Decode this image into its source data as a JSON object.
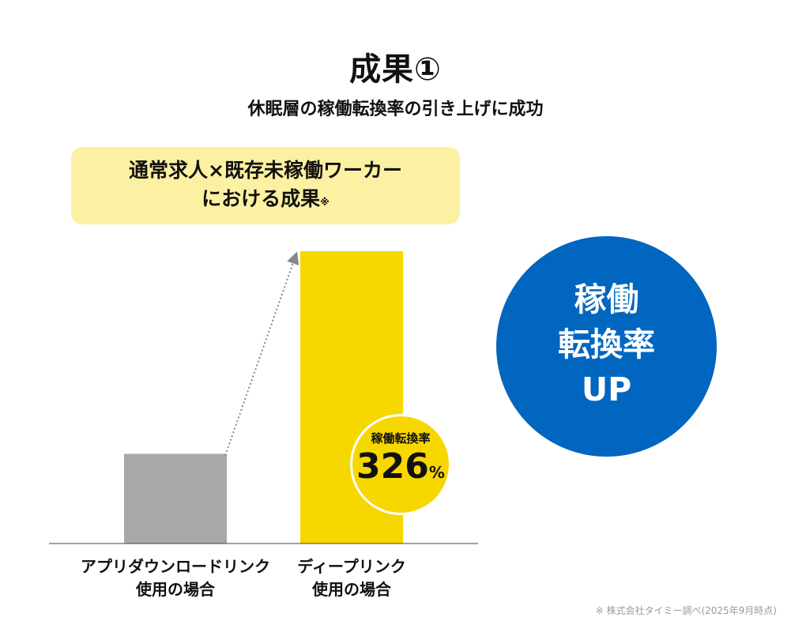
{
  "header": {
    "title": "成果①",
    "subtitle": "休眠層の稼働転換率の引き上げに成功"
  },
  "label_box": {
    "line1": "通常求人×既存未稼働ワーカー",
    "line2": "における成果",
    "note_mark": "※"
  },
  "badge": {
    "label": "稼働転換率",
    "value": "326",
    "unit": "%"
  },
  "highlight": {
    "line1": "稼働",
    "line2": "転換率",
    "line3": "UP"
  },
  "footnote": "※ 株式会社タイミー調べ(2025年9月時点)",
  "colors": {
    "baseline_bar": "#a8a8a8",
    "deeplink_bar": "#f6d700",
    "highlight_circle": "#0066bf",
    "label_box_bg": "#fcf1a2",
    "arrow": "#888888"
  },
  "chart_data": {
    "type": "bar",
    "categories": [
      [
        "アプリダウンロードリンク",
        "使用の場合"
      ],
      [
        "ディープリンク",
        "使用の場合"
      ]
    ],
    "values": [
      100,
      326
    ],
    "value_labels": [
      "",
      "稼働転換率 326%"
    ],
    "ylim": [
      0,
      326
    ],
    "grid": false,
    "legend": "none",
    "annotation": "dotted arrow from baseline bar to deeplink bar"
  }
}
